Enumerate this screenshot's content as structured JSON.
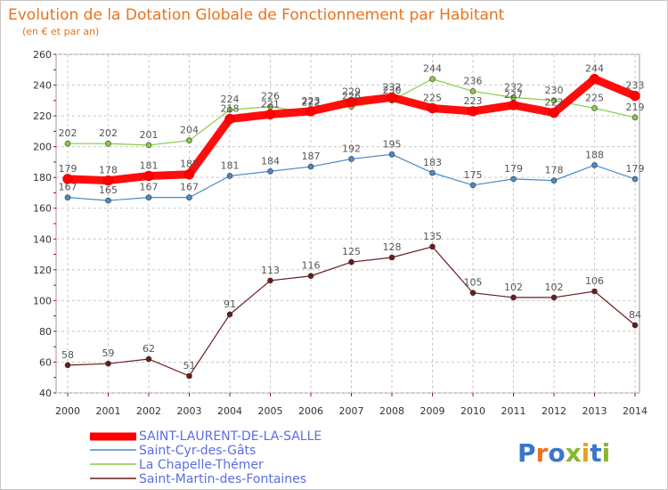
{
  "chart_data": {
    "type": "line",
    "title": "Evolution de la Dotation Globale de Fonctionnement par Habitant",
    "subtitle": "(en € et par an)",
    "xlabel": "",
    "ylabel": "",
    "x": [
      "2000",
      "2001",
      "2002",
      "2003",
      "2004",
      "2005",
      "2006",
      "2007",
      "2008",
      "2009",
      "2010",
      "2011",
      "2012",
      "2013",
      "2014"
    ],
    "ylim": [
      40,
      260
    ],
    "yticks": [
      40,
      60,
      80,
      100,
      120,
      140,
      160,
      180,
      200,
      220,
      240,
      260
    ],
    "grid": true,
    "legend_position": "bottom-left",
    "series": [
      {
        "name": "SAINT-LAURENT-DE-LA-SALLE",
        "color": "#ff0000",
        "values": [
          179,
          178,
          181,
          182,
          218,
          221,
          223,
          229,
          232,
          225,
          223,
          227,
          222,
          244,
          233
        ]
      },
      {
        "name": "Saint-Cyr-des-Gâts",
        "color": "#4a8ac8",
        "values": [
          167,
          165,
          167,
          167,
          181,
          184,
          187,
          192,
          195,
          183,
          175,
          179,
          178,
          188,
          179
        ]
      },
      {
        "name": "La Chapelle-Thémer",
        "color": "#88cc44",
        "values": [
          202,
          202,
          201,
          204,
          224,
          226,
          222,
          226,
          230,
          244,
          236,
          232,
          230,
          225,
          219
        ]
      },
      {
        "name": "Saint-Martin-des-Fontaines",
        "color": "#6b1c1c",
        "values": [
          58,
          59,
          62,
          51,
          91,
          113,
          116,
          125,
          128,
          135,
          105,
          102,
          102,
          106,
          84
        ]
      }
    ]
  },
  "logo": {
    "text": "Proxiti"
  }
}
